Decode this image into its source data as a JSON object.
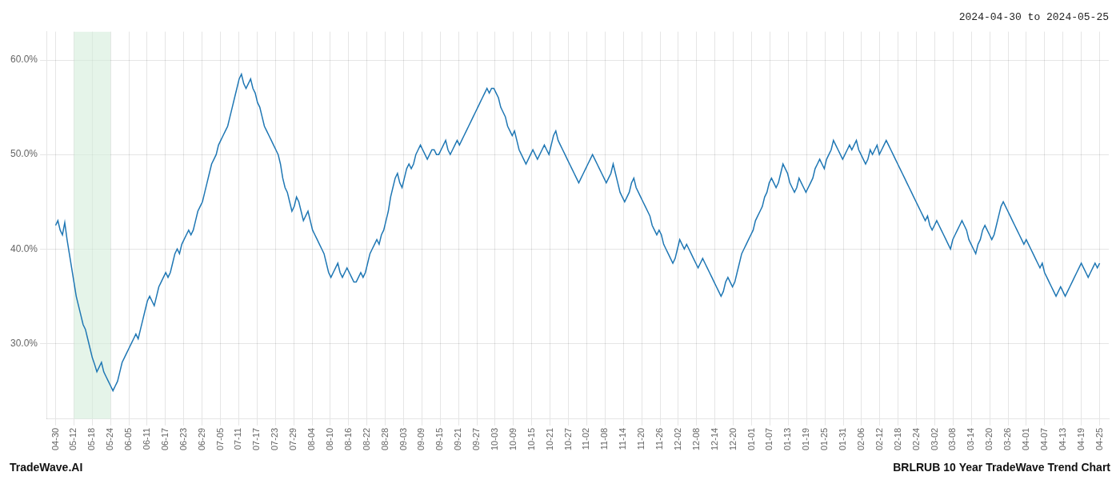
{
  "chart_data": {
    "type": "line",
    "title": "2024-04-30 to 2024-05-25",
    "annotations": [
      "TradeWave.AI",
      "BRLRUB 10 Year TradeWave Trend Chart"
    ],
    "color": "#1f77b4",
    "grid": true,
    "xlim": [
      -0.5,
      57.5
    ],
    "xticks": [
      {
        "value": 0,
        "label": "04-30"
      },
      {
        "value": 1,
        "label": "05-12"
      },
      {
        "value": 2,
        "label": "05-18"
      },
      {
        "value": 3,
        "label": "05-24"
      },
      {
        "value": 4,
        "label": "06-05"
      },
      {
        "value": 5,
        "label": "06-11"
      },
      {
        "value": 6,
        "label": "06-17"
      },
      {
        "value": 7,
        "label": "06-23"
      },
      {
        "value": 8,
        "label": "06-29"
      },
      {
        "value": 9,
        "label": "07-05"
      },
      {
        "value": 10,
        "label": "07-11"
      },
      {
        "value": 11,
        "label": "07-17"
      },
      {
        "value": 12,
        "label": "07-23"
      },
      {
        "value": 13,
        "label": "07-29"
      },
      {
        "value": 14,
        "label": "08-04"
      },
      {
        "value": 15,
        "label": "08-10"
      },
      {
        "value": 16,
        "label": "08-16"
      },
      {
        "value": 17,
        "label": "08-22"
      },
      {
        "value": 18,
        "label": "08-28"
      },
      {
        "value": 19,
        "label": "09-03"
      },
      {
        "value": 20,
        "label": "09-09"
      },
      {
        "value": 21,
        "label": "09-15"
      },
      {
        "value": 22,
        "label": "09-21"
      },
      {
        "value": 23,
        "label": "09-27"
      },
      {
        "value": 24,
        "label": "10-03"
      },
      {
        "value": 25,
        "label": "10-09"
      },
      {
        "value": 26,
        "label": "10-15"
      },
      {
        "value": 27,
        "label": "10-21"
      },
      {
        "value": 28,
        "label": "10-27"
      },
      {
        "value": 29,
        "label": "11-02"
      },
      {
        "value": 30,
        "label": "11-08"
      },
      {
        "value": 31,
        "label": "11-14"
      },
      {
        "value": 32,
        "label": "11-20"
      },
      {
        "value": 33,
        "label": "11-26"
      },
      {
        "value": 34,
        "label": "12-02"
      },
      {
        "value": 35,
        "label": "12-08"
      },
      {
        "value": 36,
        "label": "12-14"
      },
      {
        "value": 37,
        "label": "12-20"
      },
      {
        "value": 38,
        "label": "01-01"
      },
      {
        "value": 39,
        "label": "01-07"
      },
      {
        "value": 40,
        "label": "01-13"
      },
      {
        "value": 41,
        "label": "01-19"
      },
      {
        "value": 42,
        "label": "01-25"
      },
      {
        "value": 43,
        "label": "01-31"
      },
      {
        "value": 44,
        "label": "02-06"
      },
      {
        "value": 45,
        "label": "02-12"
      },
      {
        "value": 46,
        "label": "02-18"
      },
      {
        "value": 47,
        "label": "02-24"
      },
      {
        "value": 48,
        "label": "03-02"
      },
      {
        "value": 49,
        "label": "03-08"
      },
      {
        "value": 50,
        "label": "03-14"
      },
      {
        "value": 51,
        "label": "03-20"
      },
      {
        "value": 52,
        "label": "03-26"
      },
      {
        "value": 53,
        "label": "04-01"
      },
      {
        "value": 54,
        "label": "04-07"
      },
      {
        "value": 55,
        "label": "04-13"
      },
      {
        "value": 56,
        "label": "04-19"
      },
      {
        "value": 57,
        "label": "04-25"
      }
    ],
    "ylim": [
      22,
      63
    ],
    "yticks": [
      {
        "value": 30.0,
        "label": "30.0%"
      },
      {
        "value": 40.0,
        "label": "40.0%"
      },
      {
        "value": 50.0,
        "label": "50.0%"
      },
      {
        "value": 60.0,
        "label": "60.0%"
      }
    ],
    "spans": [
      {
        "start": 1.0,
        "end": 3.0,
        "color": "#d4edda"
      }
    ],
    "values": [
      42.5,
      43.0,
      42.0,
      41.5,
      42.8,
      41.0,
      39.5,
      38.0,
      36.5,
      35.0,
      34.0,
      33.0,
      32.0,
      31.5,
      30.5,
      29.5,
      28.5,
      27.8,
      27.0,
      27.5,
      28.0,
      27.0,
      26.5,
      26.0,
      25.5,
      25.0,
      25.5,
      26.0,
      27.0,
      28.0,
      28.5,
      29.0,
      29.5,
      30.0,
      30.5,
      31.0,
      30.5,
      31.5,
      32.5,
      33.5,
      34.5,
      35.0,
      34.5,
      34.0,
      35.0,
      36.0,
      36.5,
      37.0,
      37.5,
      37.0,
      37.5,
      38.5,
      39.5,
      40.0,
      39.5,
      40.5,
      41.0,
      41.5,
      42.0,
      41.5,
      42.0,
      43.0,
      44.0,
      44.5,
      45.0,
      46.0,
      47.0,
      48.0,
      49.0,
      49.5,
      50.0,
      51.0,
      51.5,
      52.0,
      52.5,
      53.0,
      54.0,
      55.0,
      56.0,
      57.0,
      58.0,
      58.5,
      57.5,
      57.0,
      57.5,
      58.0,
      57.0,
      56.5,
      55.5,
      55.0,
      54.0,
      53.0,
      52.5,
      52.0,
      51.5,
      51.0,
      50.5,
      50.0,
      49.0,
      47.5,
      46.5,
      46.0,
      45.0,
      44.0,
      44.5,
      45.5,
      45.0,
      44.0,
      43.0,
      43.5,
      44.0,
      43.0,
      42.0,
      41.5,
      41.0,
      40.5,
      40.0,
      39.5,
      38.5,
      37.5,
      37.0,
      37.5,
      38.0,
      38.5,
      37.5,
      37.0,
      37.5,
      38.0,
      37.5,
      37.0,
      36.5,
      36.5,
      37.0,
      37.5,
      37.0,
      37.5,
      38.5,
      39.5,
      40.0,
      40.5,
      41.0,
      40.5,
      41.5,
      42.0,
      43.0,
      44.0,
      45.5,
      46.5,
      47.5,
      48.0,
      47.0,
      46.5,
      47.5,
      48.5,
      49.0,
      48.5,
      49.0,
      50.0,
      50.5,
      51.0,
      50.5,
      50.0,
      49.5,
      50.0,
      50.5,
      50.5,
      50.0,
      50.0,
      50.5,
      51.0,
      51.5,
      50.5,
      50.0,
      50.5,
      51.0,
      51.5,
      51.0,
      51.5,
      52.0,
      52.5,
      53.0,
      53.5,
      54.0,
      54.5,
      55.0,
      55.5,
      56.0,
      56.5,
      57.0,
      56.5,
      57.0,
      57.0,
      56.5,
      56.0,
      55.0,
      54.5,
      54.0,
      53.0,
      52.5,
      52.0,
      52.5,
      51.5,
      50.5,
      50.0,
      49.5,
      49.0,
      49.5,
      50.0,
      50.5,
      50.0,
      49.5,
      50.0,
      50.5,
      51.0,
      50.5,
      50.0,
      51.0,
      52.0,
      52.5,
      51.5,
      51.0,
      50.5,
      50.0,
      49.5,
      49.0,
      48.5,
      48.0,
      47.5,
      47.0,
      47.5,
      48.0,
      48.5,
      49.0,
      49.5,
      50.0,
      49.5,
      49.0,
      48.5,
      48.0,
      47.5,
      47.0,
      47.5,
      48.0,
      49.0,
      48.0,
      47.0,
      46.0,
      45.5,
      45.0,
      45.5,
      46.0,
      47.0,
      47.5,
      46.5,
      46.0,
      45.5,
      45.0,
      44.5,
      44.0,
      43.5,
      42.5,
      42.0,
      41.5,
      42.0,
      41.5,
      40.5,
      40.0,
      39.5,
      39.0,
      38.5,
      39.0,
      40.0,
      41.0,
      40.5,
      40.0,
      40.5,
      40.0,
      39.5,
      39.0,
      38.5,
      38.0,
      38.5,
      39.0,
      38.5,
      38.0,
      37.5,
      37.0,
      36.5,
      36.0,
      35.5,
      35.0,
      35.5,
      36.5,
      37.0,
      36.5,
      36.0,
      36.5,
      37.5,
      38.5,
      39.5,
      40.0,
      40.5,
      41.0,
      41.5,
      42.0,
      43.0,
      43.5,
      44.0,
      44.5,
      45.5,
      46.0,
      47.0,
      47.5,
      47.0,
      46.5,
      47.0,
      48.0,
      49.0,
      48.5,
      48.0,
      47.0,
      46.5,
      46.0,
      46.5,
      47.5,
      47.0,
      46.5,
      46.0,
      46.5,
      47.0,
      47.5,
      48.5,
      49.0,
      49.5,
      49.0,
      48.5,
      49.5,
      50.0,
      50.5,
      51.5,
      51.0,
      50.5,
      50.0,
      49.5,
      50.0,
      50.5,
      51.0,
      50.5,
      51.0,
      51.5,
      50.5,
      50.0,
      49.5,
      49.0,
      49.5,
      50.5,
      50.0,
      50.5,
      51.0,
      50.0,
      50.5,
      51.0,
      51.5,
      51.0,
      50.5,
      50.0,
      49.5,
      49.0,
      48.5,
      48.0,
      47.5,
      47.0,
      46.5,
      46.0,
      45.5,
      45.0,
      44.5,
      44.0,
      43.5,
      43.0,
      43.5,
      42.5,
      42.0,
      42.5,
      43.0,
      42.5,
      42.0,
      41.5,
      41.0,
      40.5,
      40.0,
      41.0,
      41.5,
      42.0,
      42.5,
      43.0,
      42.5,
      42.0,
      41.0,
      40.5,
      40.0,
      39.5,
      40.5,
      41.0,
      42.0,
      42.5,
      42.0,
      41.5,
      41.0,
      41.5,
      42.5,
      43.5,
      44.5,
      45.0,
      44.5,
      44.0,
      43.5,
      43.0,
      42.5,
      42.0,
      41.5,
      41.0,
      40.5,
      41.0,
      40.5,
      40.0,
      39.5,
      39.0,
      38.5,
      38.0,
      38.5,
      37.5,
      37.0,
      36.5,
      36.0,
      35.5,
      35.0,
      35.5,
      36.0,
      35.5,
      35.0,
      35.5,
      36.0,
      36.5,
      37.0,
      37.5,
      38.0,
      38.5,
      38.0,
      37.5,
      37.0,
      37.5,
      38.0,
      38.5,
      38.0,
      38.5
    ]
  }
}
